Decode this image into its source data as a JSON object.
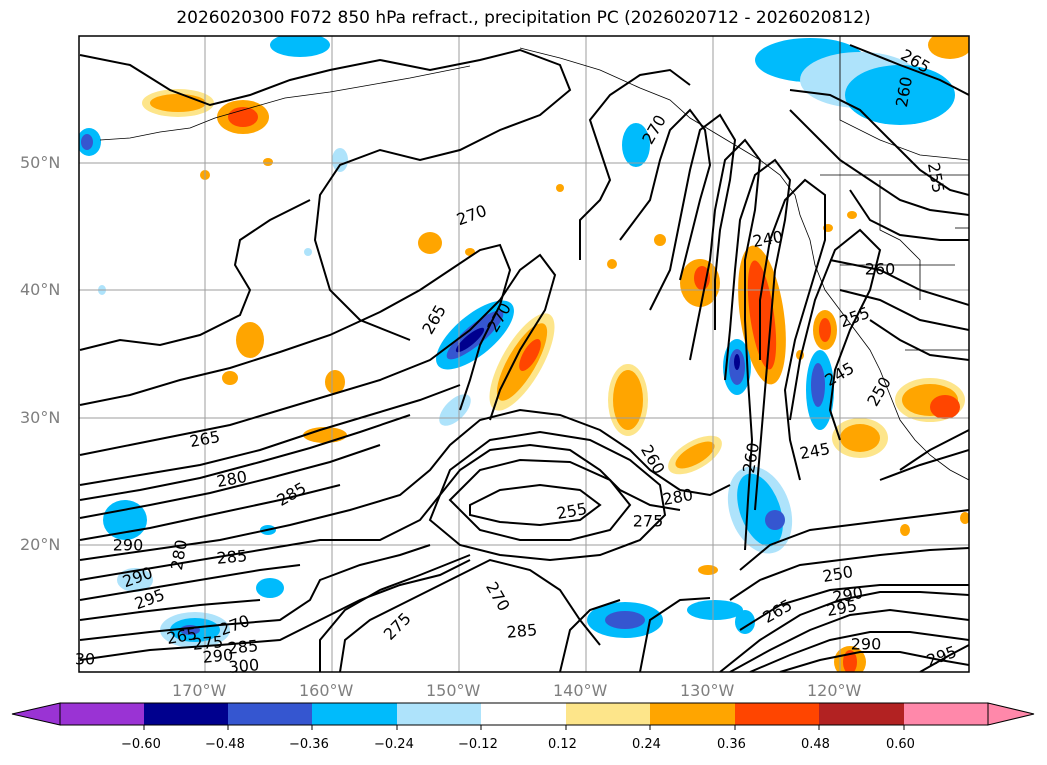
{
  "title": "2026020300 F072 850 hPa refract., precipitation PC (2026020712 - 2026020812)",
  "lon_labels": [
    "170°W",
    "160°W",
    "150°W",
    "140°W",
    "130°W",
    "120°W"
  ],
  "lat_labels": [
    "50°N",
    "40°N",
    "30°N",
    "20°N"
  ],
  "colorbar": {
    "ticks": [
      "−0.60",
      "−0.48",
      "−0.36",
      "−0.24",
      "−0.12",
      "0.12",
      "0.24",
      "0.36",
      "0.48",
      "0.60"
    ],
    "colors": [
      "#9a33d4",
      "#00008e",
      "#3556d0",
      "#00bbfc",
      "#aee3fb",
      "#ffffff",
      "#fde58a",
      "#ffa500",
      "#ff4500",
      "#b22222",
      "#ff88aa"
    ]
  },
  "contour_labels": [
    {
      "text": "265"
    },
    {
      "text": "260"
    },
    {
      "text": "270"
    },
    {
      "text": "255"
    },
    {
      "text": "270"
    },
    {
      "text": "240"
    },
    {
      "text": "260"
    },
    {
      "text": "265"
    },
    {
      "text": "270"
    },
    {
      "text": "255"
    },
    {
      "text": "245"
    },
    {
      "text": "250"
    },
    {
      "text": "265"
    },
    {
      "text": "280"
    },
    {
      "text": "285"
    },
    {
      "text": "260"
    },
    {
      "text": "260"
    },
    {
      "text": "245"
    },
    {
      "text": "255"
    },
    {
      "text": "280"
    },
    {
      "text": "275"
    },
    {
      "text": "290"
    },
    {
      "text": "280"
    },
    {
      "text": "285"
    },
    {
      "text": "290"
    },
    {
      "text": "295"
    },
    {
      "text": "270"
    },
    {
      "text": "285"
    },
    {
      "text": "275"
    },
    {
      "text": "250"
    },
    {
      "text": "290"
    },
    {
      "text": "295"
    },
    {
      "text": "265"
    },
    {
      "text": "265"
    },
    {
      "text": "275"
    },
    {
      "text": "270"
    },
    {
      "text": "290"
    },
    {
      "text": "285"
    },
    {
      "text": "300"
    },
    {
      "text": "290"
    },
    {
      "text": "295"
    },
    {
      "text": "30"
    }
  ]
}
